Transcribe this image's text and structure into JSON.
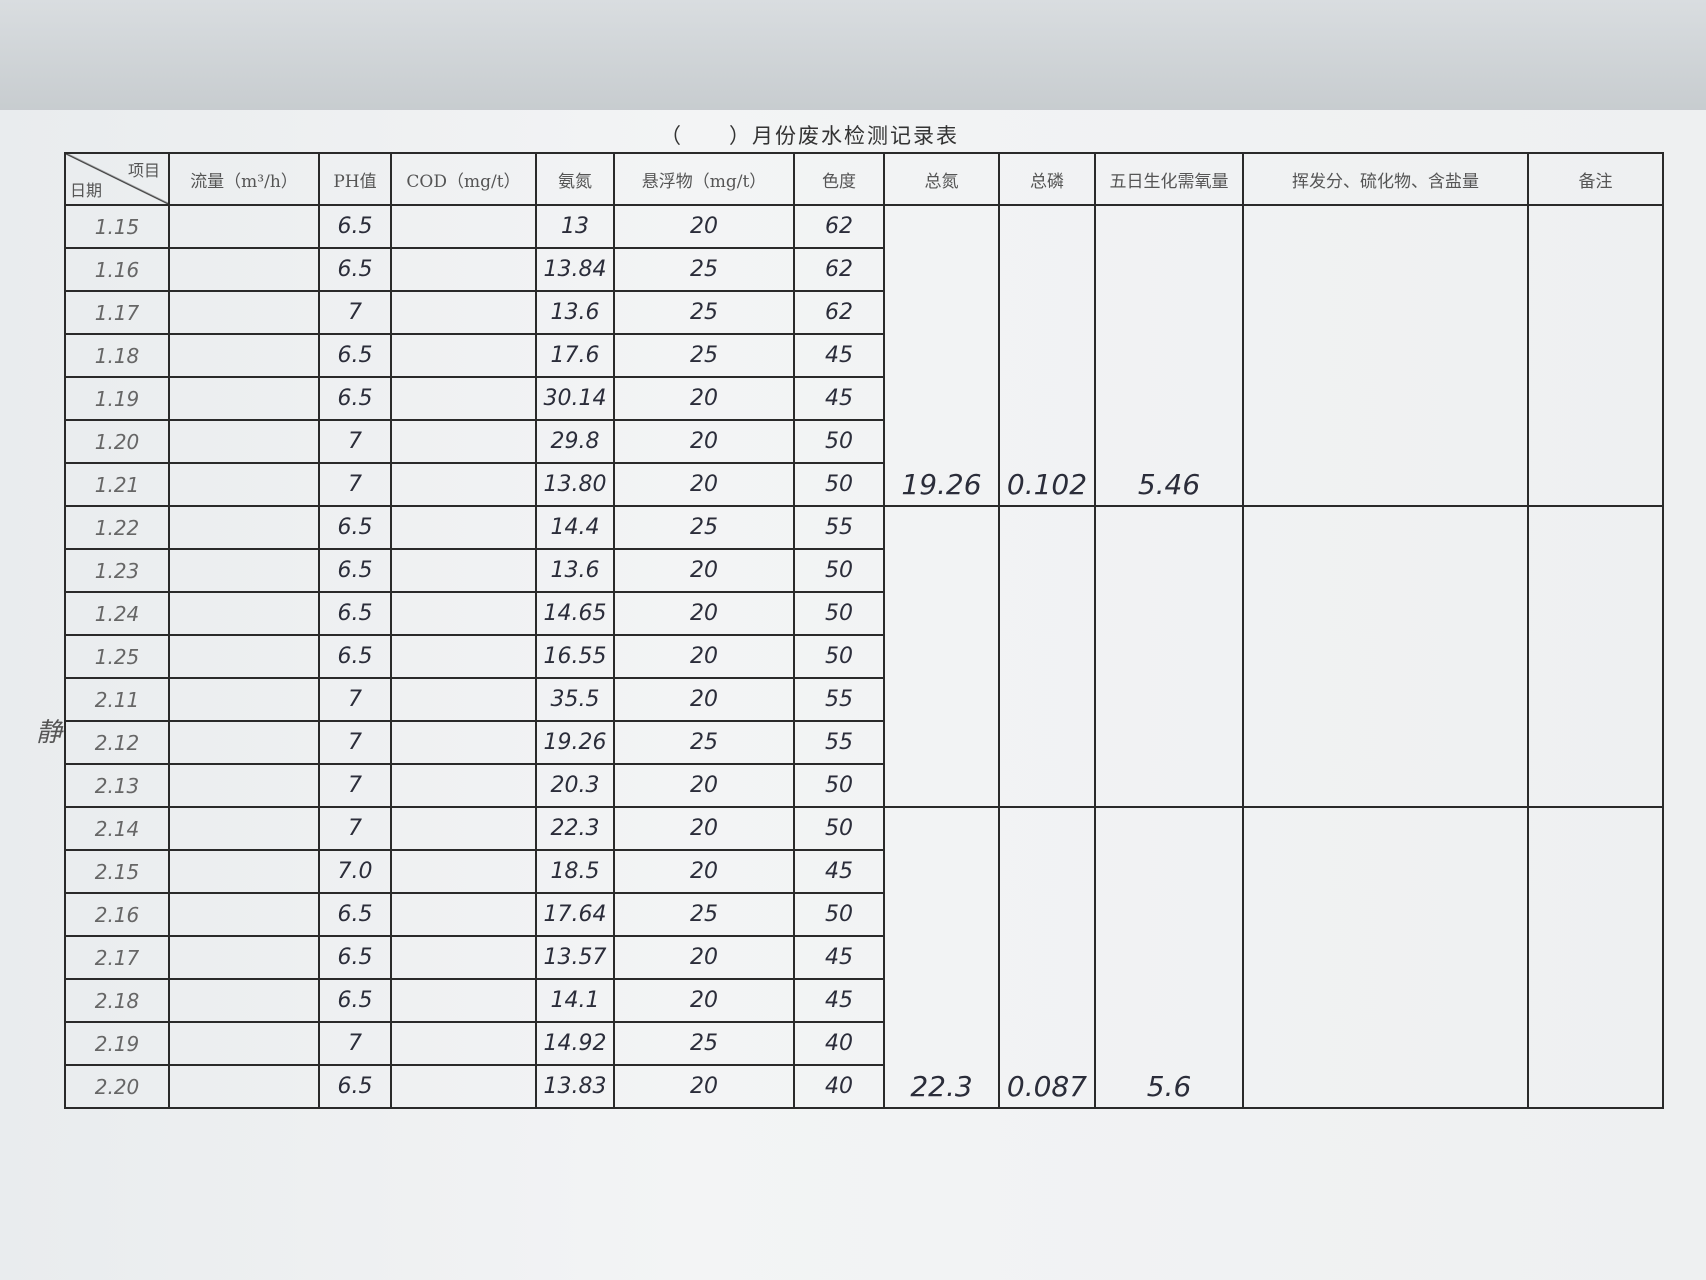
{
  "title": "（　　）月份废水检测记录表",
  "header": {
    "item": "项目",
    "date": "日期",
    "columns": [
      "流量（m³/h）",
      "PH值",
      "COD（mg/t）",
      "氨氮",
      "悬浮物（mg/t）",
      "色度",
      "总氮",
      "总磷",
      "五日生化需氧量",
      "挥发分、硫化物、含盐量",
      "备注"
    ]
  },
  "rows": [
    {
      "date": "1.15",
      "ph": "6.5",
      "nh": "13",
      "ss": "20",
      "color": "62"
    },
    {
      "date": "1.16",
      "ph": "6.5",
      "nh": "13.84",
      "ss": "25",
      "color": "62"
    },
    {
      "date": "1.17",
      "ph": "7",
      "nh": "13.6",
      "ss": "25",
      "color": "62"
    },
    {
      "date": "1.18",
      "ph": "6.5",
      "nh": "17.6",
      "ss": "25",
      "color": "45"
    },
    {
      "date": "1.19",
      "ph": "6.5",
      "nh": "30.14",
      "ss": "20",
      "color": "45"
    },
    {
      "date": "1.20",
      "ph": "7",
      "nh": "29.8",
      "ss": "20",
      "color": "50"
    },
    {
      "date": "1.21",
      "ph": "7",
      "nh": "13.80",
      "ss": "20",
      "color": "50"
    },
    {
      "date": "1.22",
      "ph": "6.5",
      "nh": "14.4",
      "ss": "25",
      "color": "55"
    },
    {
      "date": "1.23",
      "ph": "6.5",
      "nh": "13.6",
      "ss": "20",
      "color": "50"
    },
    {
      "date": "1.24",
      "ph": "6.5",
      "nh": "14.65",
      "ss": "20",
      "color": "50"
    },
    {
      "date": "1.25",
      "ph": "6.5",
      "nh": "16.55",
      "ss": "20",
      "color": "50"
    },
    {
      "date": "2.11",
      "ph": "7",
      "nh": "35.5",
      "ss": "20",
      "color": "55"
    },
    {
      "date": "2.12",
      "ph": "7",
      "nh": "19.26",
      "ss": "25",
      "color": "55"
    },
    {
      "date": "2.13",
      "ph": "7",
      "nh": "20.3",
      "ss": "20",
      "color": "50"
    },
    {
      "date": "2.14",
      "ph": "7",
      "nh": "22.3",
      "ss": "20",
      "color": "50"
    },
    {
      "date": "2.15",
      "ph": "7.0",
      "nh": "18.5",
      "ss": "20",
      "color": "45"
    },
    {
      "date": "2.16",
      "ph": "6.5",
      "nh": "17.64",
      "ss": "25",
      "color": "50"
    },
    {
      "date": "2.17",
      "ph": "6.5",
      "nh": "13.57",
      "ss": "20",
      "color": "45"
    },
    {
      "date": "2.18",
      "ph": "6.5",
      "nh": "14.1",
      "ss": "20",
      "color": "45"
    },
    {
      "date": "2.19",
      "ph": "7",
      "nh": "14.92",
      "ss": "25",
      "color": "40"
    },
    {
      "date": "2.20",
      "ph": "6.5",
      "nh": "13.83",
      "ss": "20",
      "color": "40"
    }
  ],
  "groups": [
    {
      "tn": "19.26",
      "tp": "0.102",
      "bod": "5.46"
    },
    {
      "tn": "",
      "tp": "",
      "bod": ""
    },
    {
      "tn": "22.3",
      "tp": "0.087",
      "bod": "5.6"
    }
  ],
  "margin_note": "静"
}
